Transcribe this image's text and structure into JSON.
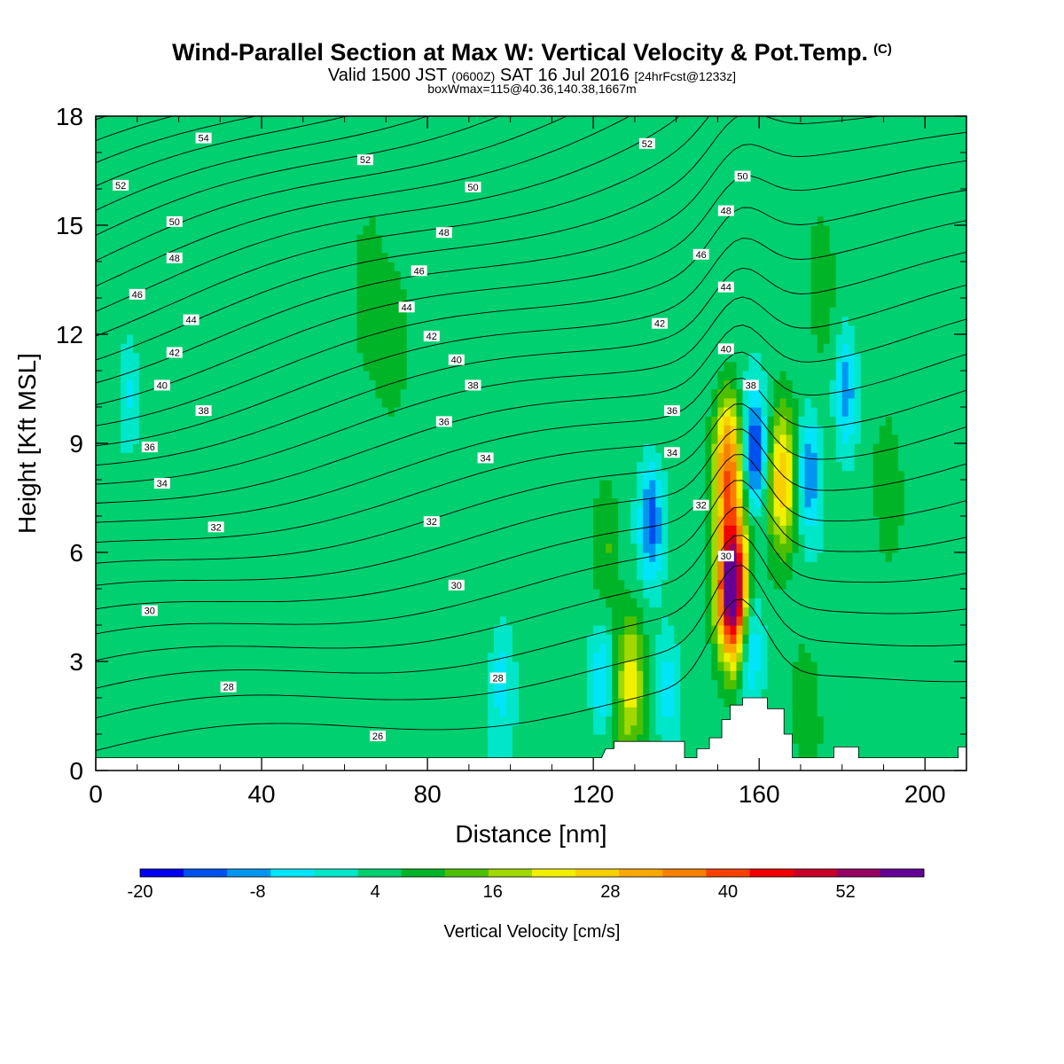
{
  "titles": {
    "main": "Wind-Parallel Section at Max W: Vertical Velocity & Pot.Temp.",
    "copyright": "(C)",
    "valid_prefix": "Valid 1500 JST",
    "valid_z": "(0600Z)",
    "valid_date": "SAT 16 Jul 2016",
    "forecast": "[24hrFcst@1233z]",
    "boxinfo": "boxWmax=115@40.36,140.38,1667m"
  },
  "chart_data": {
    "type": "heatmap",
    "xlabel": "Distance [nm]",
    "ylabel": "Height [Kft MSL]",
    "xlim": [
      0,
      210
    ],
    "ylim": [
      0,
      18
    ],
    "xticks": [
      0,
      40,
      80,
      120,
      160,
      200
    ],
    "yticks": [
      0,
      3,
      6,
      9,
      12,
      15,
      18
    ],
    "colorbar": {
      "label": "Vertical Velocity [cm/s]",
      "ticks": [
        -20,
        -8,
        4,
        16,
        28,
        40,
        52
      ],
      "bounds": [
        -20,
        60
      ],
      "step": 4,
      "colors": [
        "#0000ee",
        "#0050ee",
        "#0096f0",
        "#00e6f8",
        "#00e6c8",
        "#00d070",
        "#00b428",
        "#4cc000",
        "#a0d800",
        "#f0f000",
        "#f8d000",
        "#f8a800",
        "#f88000",
        "#f84000",
        "#f00000",
        "#c80028",
        "#960060",
        "#640096"
      ]
    },
    "background_value_cm_s": 2,
    "updraft_cells": [
      {
        "x": 71.5,
        "y": 12.0,
        "max": 6
      },
      {
        "x": 66,
        "y": 14.0,
        "max": 6
      },
      {
        "x": 123,
        "y": 6.0,
        "max": 10
      },
      {
        "x": 129,
        "y": 2.5,
        "max": 18
      },
      {
        "x": 153.5,
        "y": 5.0,
        "max": 56
      },
      {
        "x": 152.5,
        "y": 8.5,
        "max": 30
      },
      {
        "x": 165.5,
        "y": 8.0,
        "max": 24
      },
      {
        "x": 171,
        "y": 2.0,
        "max": 6
      },
      {
        "x": 191,
        "y": 7.5,
        "max": 8
      },
      {
        "x": 175,
        "y": 14.0,
        "max": 6
      }
    ],
    "downdraft_cells": [
      {
        "x": 134,
        "y": 6.8,
        "min": -14
      },
      {
        "x": 159,
        "y": 8.8,
        "min": -18
      },
      {
        "x": 172,
        "y": 8.2,
        "min": -12
      },
      {
        "x": 181,
        "y": 10.5,
        "min": -12
      },
      {
        "x": 158,
        "y": 3.5,
        "min": -10
      },
      {
        "x": 122,
        "y": 2.5,
        "min": -8
      },
      {
        "x": 138,
        "y": 2.3,
        "min": -6
      },
      {
        "x": 98,
        "y": 2.6,
        "min": -6
      },
      {
        "x": 8,
        "y": 10.5,
        "min": -6
      }
    ],
    "terrain": [
      [
        0,
        0.35
      ],
      [
        120,
        0.35
      ],
      [
        122,
        0.35
      ],
      [
        123,
        0.6
      ],
      [
        125,
        0.6
      ],
      [
        125,
        0.8
      ],
      [
        142,
        0.8
      ],
      [
        142,
        0.35
      ],
      [
        145,
        0.35
      ],
      [
        145,
        0.6
      ],
      [
        148,
        0.6
      ],
      [
        148,
        0.9
      ],
      [
        151,
        0.9
      ],
      [
        151,
        1.4
      ],
      [
        153,
        1.4
      ],
      [
        153,
        1.8
      ],
      [
        156,
        1.8
      ],
      [
        156,
        2.0
      ],
      [
        162,
        2.0
      ],
      [
        162,
        1.7
      ],
      [
        166,
        1.7
      ],
      [
        166,
        1.0
      ],
      [
        168,
        1.0
      ],
      [
        168,
        0.35
      ],
      [
        178,
        0.35
      ],
      [
        178,
        0.65
      ],
      [
        184,
        0.65
      ],
      [
        184,
        0.35
      ],
      [
        208,
        0.35
      ],
      [
        208,
        0.65
      ],
      [
        210,
        0.65
      ]
    ],
    "theta_contours": {
      "levels": [
        26,
        27,
        28,
        29,
        30,
        31,
        32,
        33,
        34,
        35,
        36,
        37,
        38,
        39,
        40,
        41,
        42,
        43,
        44,
        45,
        46,
        47,
        48,
        49,
        50,
        51,
        52,
        53,
        54
      ],
      "labels": [
        {
          "text": "54",
          "x": 26,
          "y": 17.4
        },
        {
          "text": "52",
          "x": 6,
          "y": 16.1
        },
        {
          "text": "52",
          "x": 65,
          "y": 16.8
        },
        {
          "text": "52",
          "x": 133,
          "y": 17.25
        },
        {
          "text": "50",
          "x": 19,
          "y": 15.1
        },
        {
          "text": "50",
          "x": 91,
          "y": 16.05
        },
        {
          "text": "50",
          "x": 156,
          "y": 16.35
        },
        {
          "text": "48",
          "x": 19,
          "y": 14.1
        },
        {
          "text": "48",
          "x": 84,
          "y": 14.8
        },
        {
          "text": "48",
          "x": 152,
          "y": 15.4
        },
        {
          "text": "46",
          "x": 10,
          "y": 13.1
        },
        {
          "text": "46",
          "x": 78,
          "y": 13.75
        },
        {
          "text": "46",
          "x": 146,
          "y": 14.2
        },
        {
          "text": "44",
          "x": 23,
          "y": 12.4
        },
        {
          "text": "44",
          "x": 75,
          "y": 12.75
        },
        {
          "text": "44",
          "x": 152,
          "y": 13.3
        },
        {
          "text": "42",
          "x": 19,
          "y": 11.5
        },
        {
          "text": "42",
          "x": 81,
          "y": 11.95
        },
        {
          "text": "42",
          "x": 136,
          "y": 12.3
        },
        {
          "text": "40",
          "x": 16,
          "y": 10.6
        },
        {
          "text": "40",
          "x": 87,
          "y": 11.3
        },
        {
          "text": "40",
          "x": 152,
          "y": 11.6
        },
        {
          "text": "38",
          "x": 26,
          "y": 9.9
        },
        {
          "text": "38",
          "x": 91,
          "y": 10.6
        },
        {
          "text": "38",
          "x": 158,
          "y": 10.6
        },
        {
          "text": "36",
          "x": 13,
          "y": 8.9
        },
        {
          "text": "36",
          "x": 84,
          "y": 9.6
        },
        {
          "text": "36",
          "x": 139,
          "y": 9.9
        },
        {
          "text": "34",
          "x": 16,
          "y": 7.9
        },
        {
          "text": "34",
          "x": 94,
          "y": 8.6
        },
        {
          "text": "34",
          "x": 139,
          "y": 8.75
        },
        {
          "text": "32",
          "x": 29,
          "y": 6.7
        },
        {
          "text": "32",
          "x": 81,
          "y": 6.85
        },
        {
          "text": "32",
          "x": 146,
          "y": 7.3
        },
        {
          "text": "30",
          "x": 13,
          "y": 4.4
        },
        {
          "text": "30",
          "x": 87,
          "y": 5.1
        },
        {
          "text": "30",
          "x": 152,
          "y": 5.9
        },
        {
          "text": "28",
          "x": 32,
          "y": 2.3
        },
        {
          "text": "28",
          "x": 97,
          "y": 2.55
        },
        {
          "text": "26",
          "x": 68,
          "y": 0.95
        }
      ]
    }
  }
}
